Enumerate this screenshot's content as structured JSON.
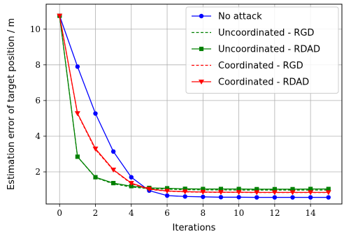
{
  "chart_data": {
    "type": "line",
    "title": "",
    "xlabel": "Iterations",
    "ylabel": "Estimation error of target position / m",
    "xlim": [
      -0.75,
      15.75
    ],
    "ylim": [
      0.2,
      11.4
    ],
    "xticks": [
      0,
      2,
      4,
      6,
      8,
      10,
      12,
      14
    ],
    "yticks": [
      2,
      4,
      6,
      8,
      10
    ],
    "grid": true,
    "legend_position": "top-right",
    "x": [
      0,
      1,
      2,
      3,
      4,
      5,
      6,
      7,
      8,
      9,
      10,
      11,
      12,
      13,
      14,
      15
    ],
    "series": [
      {
        "name": "No attack",
        "color": "#0000ff",
        "linestyle": "solid",
        "marker": "circle",
        "values": [
          10.75,
          7.9,
          5.27,
          3.14,
          1.7,
          0.95,
          0.67,
          0.62,
          0.6,
          0.58,
          0.58,
          0.57,
          0.57,
          0.57,
          0.57,
          0.57
        ]
      },
      {
        "name": "Uncoordinated - RGD",
        "color": "#008000",
        "linestyle": "dashed",
        "marker": "none",
        "values": [
          10.75,
          2.85,
          1.68,
          1.33,
          1.15,
          1.06,
          1.03,
          1.0,
          0.99,
          0.99,
          0.98,
          0.98,
          0.98,
          0.98,
          0.98,
          0.98
        ]
      },
      {
        "name": "Uncoordinated - RDAD",
        "color": "#008000",
        "linestyle": "solid",
        "marker": "square",
        "values": [
          10.75,
          2.85,
          1.7,
          1.37,
          1.2,
          1.1,
          1.08,
          1.05,
          1.04,
          1.04,
          1.04,
          1.03,
          1.03,
          1.03,
          1.04,
          1.04
        ]
      },
      {
        "name": "Coordinated - RGD",
        "color": "#ff0000",
        "linestyle": "dashed",
        "marker": "none",
        "values": [
          10.75,
          5.25,
          3.25,
          2.1,
          1.34,
          1.02,
          0.92,
          0.88,
          0.86,
          0.85,
          0.85,
          0.84,
          0.84,
          0.84,
          0.84,
          0.84
        ]
      },
      {
        "name": "Coordinated - RDAD",
        "color": "#ff0000",
        "linestyle": "solid",
        "marker": "triangle-down",
        "values": [
          10.75,
          5.28,
          3.3,
          2.12,
          1.37,
          1.04,
          0.93,
          0.89,
          0.87,
          0.86,
          0.86,
          0.85,
          0.85,
          0.85,
          0.85,
          0.85
        ]
      }
    ]
  }
}
